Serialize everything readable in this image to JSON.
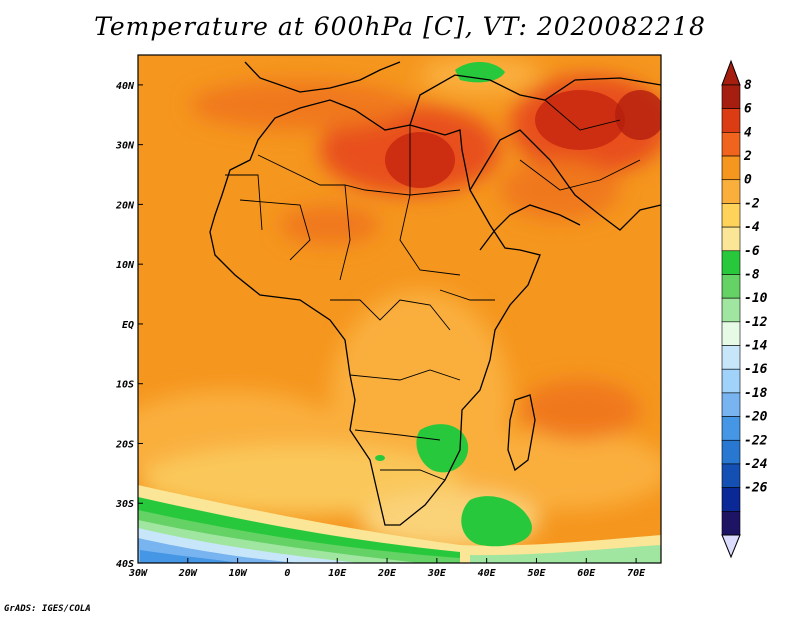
{
  "title": "Temperature at 600hPa [C], VT: 2020082218",
  "credit": "GrADS: IGES/COLA",
  "map": {
    "lon_range": [
      -30,
      75
    ],
    "lat_range": [
      -40,
      45
    ],
    "lon_ticks": [
      {
        "value": -30,
        "label": "30W"
      },
      {
        "value": -20,
        "label": "20W"
      },
      {
        "value": -10,
        "label": "10W"
      },
      {
        "value": 0,
        "label": "0"
      },
      {
        "value": 10,
        "label": "10E"
      },
      {
        "value": 20,
        "label": "20E"
      },
      {
        "value": 30,
        "label": "30E"
      },
      {
        "value": 40,
        "label": "40E"
      },
      {
        "value": 50,
        "label": "50E"
      },
      {
        "value": 60,
        "label": "60E"
      },
      {
        "value": 70,
        "label": "70E"
      }
    ],
    "lat_ticks": [
      {
        "value": 40,
        "label": "40N"
      },
      {
        "value": 30,
        "label": "30N"
      },
      {
        "value": 20,
        "label": "20N"
      },
      {
        "value": 10,
        "label": "10N"
      },
      {
        "value": 0,
        "label": "EQ"
      },
      {
        "value": -10,
        "label": "10S"
      },
      {
        "value": -20,
        "label": "20S"
      },
      {
        "value": -30,
        "label": "30S"
      },
      {
        "value": -40,
        "label": "40S"
      }
    ]
  },
  "colorbar": {
    "labels": [
      "8",
      "6",
      "4",
      "2",
      "0",
      "-2",
      "-4",
      "-6",
      "-8",
      "-10",
      "-12",
      "-14",
      "-16",
      "-18",
      "-20",
      "-22",
      "-24",
      "-26"
    ],
    "colors": [
      "#a51e10",
      "#dc3c14",
      "#f0641e",
      "#f5961e",
      "#faaf3c",
      "#ffd25a",
      "#fae696",
      "#28c83c",
      "#64d264",
      "#a0e6a0",
      "#e6fae6",
      "#c8e6fa",
      "#a0d2fa",
      "#78b4f0",
      "#4696e6",
      "#2878d2",
      "#1450b4",
      "#0a2896",
      "#1e1464"
    ],
    "top_arrow_color": "#a51e10",
    "bottom_arrow_color": "#dcdcff"
  }
}
